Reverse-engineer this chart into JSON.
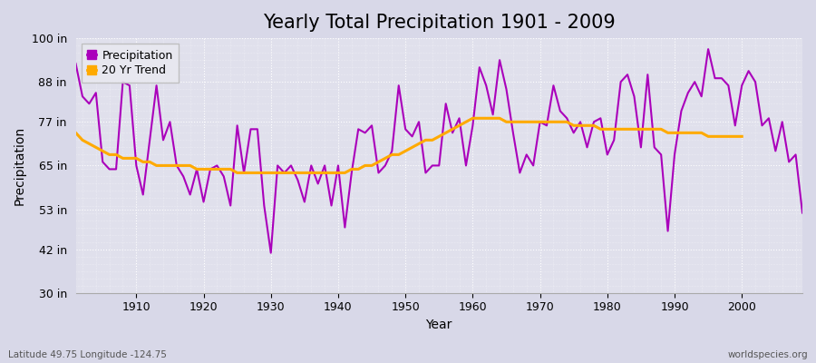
{
  "title": "Yearly Total Precipitation 1901 - 2009",
  "xlabel": "Year",
  "ylabel": "Precipitation",
  "lat_lon_label": "Latitude 49.75 Longitude -124.75",
  "watermark": "worldspecies.org",
  "years": [
    1901,
    1902,
    1903,
    1904,
    1905,
    1906,
    1907,
    1908,
    1909,
    1910,
    1911,
    1912,
    1913,
    1914,
    1915,
    1916,
    1917,
    1918,
    1919,
    1920,
    1921,
    1922,
    1923,
    1924,
    1925,
    1926,
    1927,
    1928,
    1929,
    1930,
    1931,
    1932,
    1933,
    1934,
    1935,
    1936,
    1937,
    1938,
    1939,
    1940,
    1941,
    1942,
    1943,
    1944,
    1945,
    1946,
    1947,
    1948,
    1949,
    1950,
    1951,
    1952,
    1953,
    1954,
    1955,
    1956,
    1957,
    1958,
    1959,
    1960,
    1961,
    1962,
    1963,
    1964,
    1965,
    1966,
    1967,
    1968,
    1969,
    1970,
    1971,
    1972,
    1973,
    1974,
    1975,
    1976,
    1977,
    1978,
    1979,
    1980,
    1981,
    1982,
    1983,
    1984,
    1985,
    1986,
    1987,
    1988,
    1989,
    1990,
    1991,
    1992,
    1993,
    1994,
    1995,
    1996,
    1997,
    1998,
    1999,
    2000,
    2001,
    2002,
    2003,
    2004,
    2005,
    2006,
    2007,
    2008,
    2009
  ],
  "precip": [
    93,
    84,
    82,
    85,
    66,
    64,
    64,
    88,
    87,
    65,
    57,
    72,
    87,
    72,
    77,
    65,
    62,
    57,
    64,
    55,
    64,
    65,
    62,
    54,
    76,
    63,
    75,
    75,
    54,
    41,
    65,
    63,
    65,
    61,
    55,
    65,
    60,
    65,
    54,
    65,
    48,
    63,
    75,
    74,
    76,
    63,
    65,
    69,
    87,
    75,
    73,
    77,
    63,
    65,
    65,
    82,
    74,
    78,
    65,
    76,
    92,
    87,
    79,
    94,
    86,
    74,
    63,
    68,
    65,
    77,
    76,
    87,
    80,
    78,
    74,
    77,
    70,
    77,
    78,
    68,
    72,
    88,
    90,
    84,
    70,
    90,
    70,
    68,
    47,
    68,
    80,
    85,
    88,
    84,
    97,
    89,
    89,
    87,
    76,
    87,
    91,
    88,
    76,
    78,
    69,
    77,
    66,
    68,
    52
  ],
  "trend": [
    74,
    72,
    71,
    70,
    69,
    68,
    68,
    67,
    67,
    67,
    66,
    66,
    65,
    65,
    65,
    65,
    65,
    65,
    64,
    64,
    64,
    64,
    64,
    64,
    63,
    63,
    63,
    63,
    63,
    63,
    63,
    63,
    63,
    63,
    63,
    63,
    63,
    63,
    63,
    63,
    63,
    64,
    64,
    65,
    65,
    66,
    67,
    68,
    68,
    69,
    70,
    71,
    72,
    72,
    73,
    74,
    75,
    76,
    77,
    78,
    78,
    78,
    78,
    78,
    77,
    77,
    77,
    77,
    77,
    77,
    77,
    77,
    77,
    77,
    76,
    76,
    76,
    76,
    75,
    75,
    75,
    75,
    75,
    75,
    75,
    75,
    75,
    75,
    74,
    74,
    74,
    74,
    74,
    74,
    73,
    73,
    73,
    73,
    73,
    73
  ],
  "ylim": [
    30,
    100
  ],
  "yticks": [
    30,
    42,
    53,
    65,
    77,
    88,
    100
  ],
  "ytick_labels": [
    "30 in",
    "42 in",
    "53 in",
    "65 in",
    "77 in",
    "88 in",
    "100 in"
  ],
  "xlim": [
    1901,
    2009
  ],
  "xticks": [
    1910,
    1920,
    1930,
    1940,
    1950,
    1960,
    1970,
    1980,
    1990,
    2000
  ],
  "fig_bg_color": "#d8d8e8",
  "plot_bg_color": "#e0e0ec",
  "precip_color": "#aa00bb",
  "trend_color": "#ffaa00",
  "title_fontsize": 15,
  "label_fontsize": 10,
  "tick_fontsize": 9,
  "legend_fontsize": 9
}
